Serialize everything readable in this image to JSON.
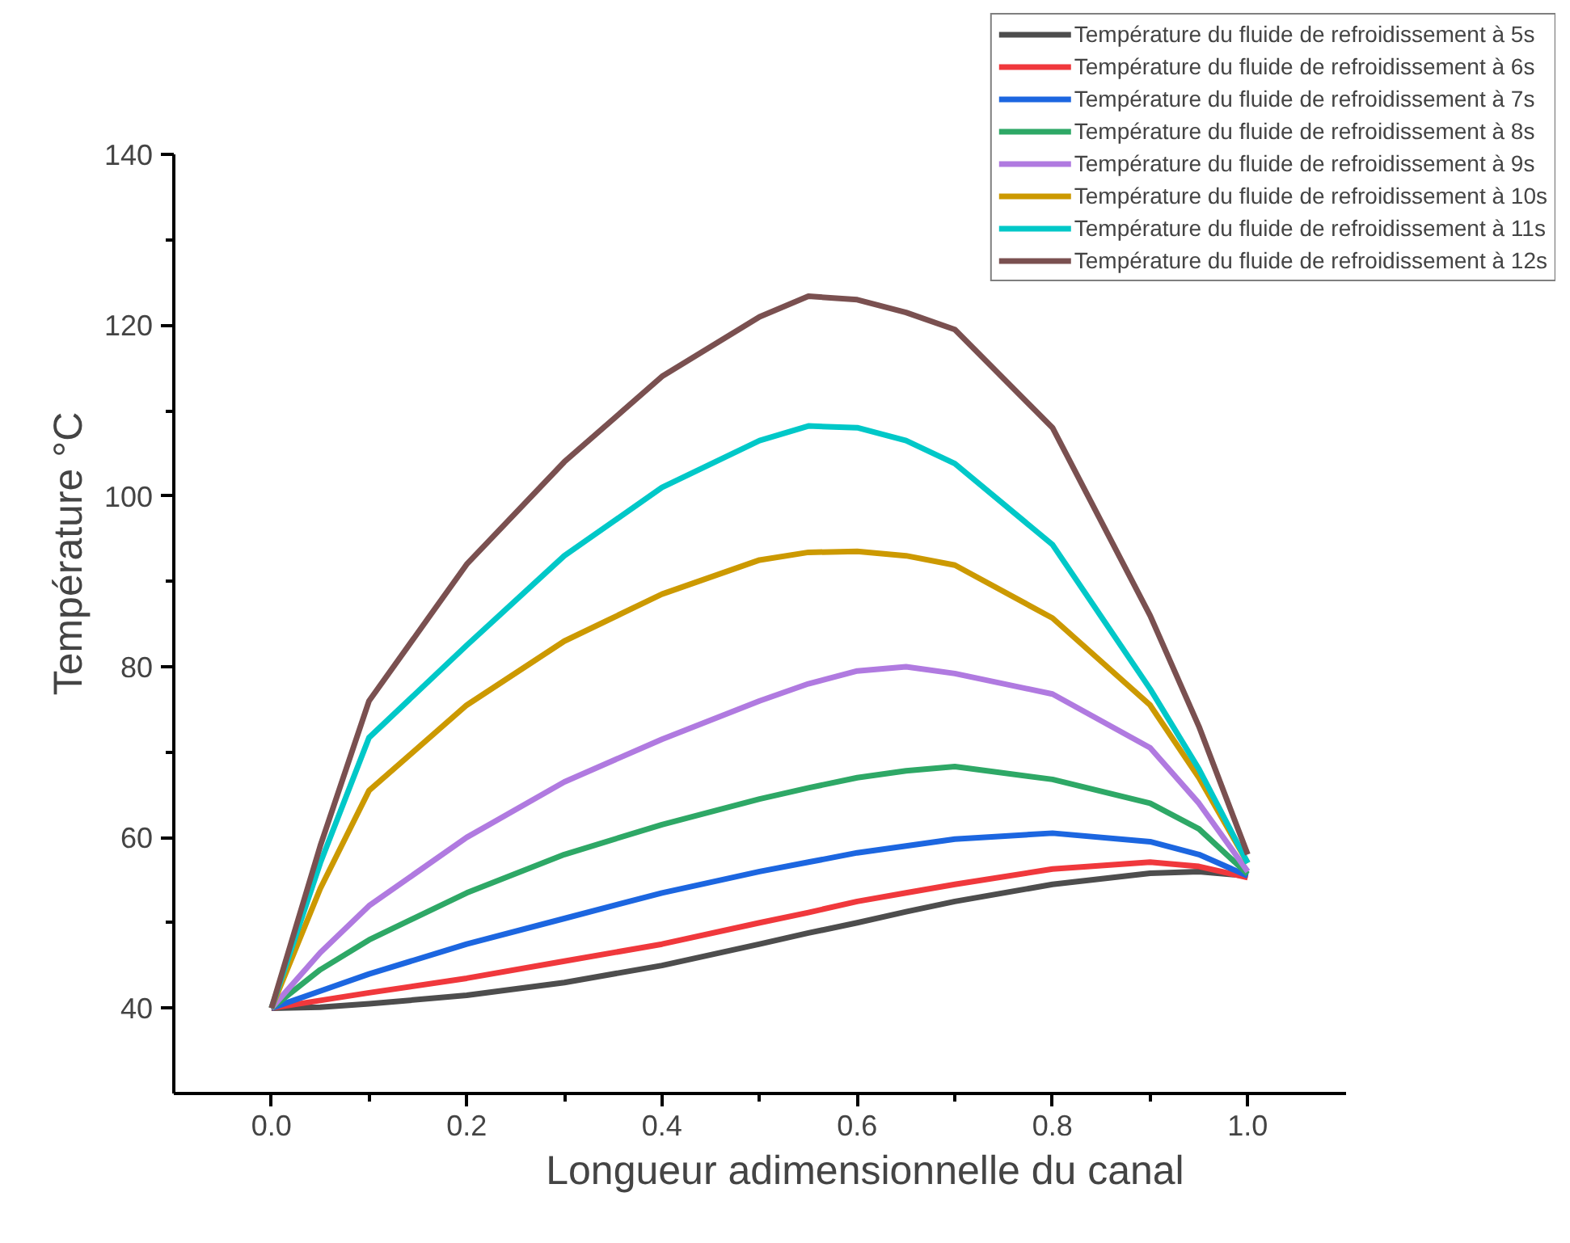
{
  "chart_data": {
    "type": "line",
    "xlabel": "Longueur adimensionnelle du canal",
    "ylabel": "Température °C",
    "x": [
      0,
      0.05,
      0.1,
      0.2,
      0.3,
      0.4,
      0.5,
      0.55,
      0.6,
      0.65,
      0.7,
      0.8,
      0.9,
      0.95,
      1.0
    ],
    "series": [
      {
        "name": "Température du fluide de refroidissement à 5s",
        "color": "#4d4d4d",
        "values": [
          40,
          40.1,
          40.5,
          41.5,
          43,
          45,
          47.5,
          48.8,
          50,
          51.3,
          52.5,
          54.5,
          55.8,
          56,
          55.5
        ]
      },
      {
        "name": "Température du fluide de refroidissement à 6s",
        "color": "#f0383c",
        "values": [
          40,
          40.9,
          41.8,
          43.5,
          45.5,
          47.5,
          50,
          51.2,
          52.5,
          53.5,
          54.5,
          56.3,
          57.1,
          56.6,
          55.3
        ]
      },
      {
        "name": "Température du fluide de refroidissement à 7s",
        "color": "#1c66e0",
        "values": [
          40,
          42,
          44,
          47.5,
          50.5,
          53.5,
          56,
          57.1,
          58.2,
          59,
          59.8,
          60.5,
          59.5,
          58,
          55.5
        ]
      },
      {
        "name": "Température du fluide de refroidissement à 8s",
        "color": "#2ea866",
        "values": [
          40,
          44.5,
          48,
          53.5,
          58,
          61.5,
          64.5,
          65.8,
          67,
          67.8,
          68.3,
          66.8,
          64,
          61,
          55.7
        ]
      },
      {
        "name": "Température du fluide de refroidissement à 9s",
        "color": "#b07ae0",
        "values": [
          40,
          46.5,
          52,
          60,
          66.5,
          71.5,
          76,
          78,
          79.5,
          80,
          79.2,
          76.8,
          70.5,
          64,
          56
        ]
      },
      {
        "name": "Température du fluide de refroidissement à 10s",
        "color": "#cc9900",
        "values": [
          40,
          54,
          65.5,
          75.5,
          83,
          88.5,
          92.5,
          93.4,
          93.5,
          93,
          91.9,
          85.7,
          75.5,
          67,
          57
        ]
      },
      {
        "name": "Température du fluide de refroidissement à 11s",
        "color": "#00c8c8",
        "values": [
          40,
          57,
          71.7,
          82.5,
          93,
          101,
          106.5,
          108.2,
          108,
          106.5,
          103.8,
          94.3,
          77.4,
          68,
          57
        ]
      },
      {
        "name": "Température du fluide de refroidissement à 12s",
        "color": "#7a5050",
        "values": [
          40,
          59,
          76,
          92,
          104,
          114,
          121,
          123.4,
          123,
          121.5,
          119.5,
          108,
          86,
          73,
          58
        ]
      }
    ],
    "xlim": [
      -0.1,
      1.1
    ],
    "xticks": [
      {
        "value": 0,
        "label": "0.0"
      },
      {
        "value": 0.1,
        "label": null
      },
      {
        "value": 0.2,
        "label": "0.2"
      },
      {
        "value": 0.3,
        "label": null
      },
      {
        "value": 0.4,
        "label": "0.4"
      },
      {
        "value": 0.5,
        "label": null
      },
      {
        "value": 0.6,
        "label": "0.6"
      },
      {
        "value": 0.7,
        "label": null
      },
      {
        "value": 0.8,
        "label": "0.8"
      },
      {
        "value": 0.9,
        "label": null
      },
      {
        "value": 1.0,
        "label": "1.0"
      }
    ],
    "ylim": [
      30,
      140
    ],
    "yticks": [
      40,
      {
        "value": 50,
        "label": null
      },
      60,
      {
        "value": 70,
        "label": null
      },
      80,
      {
        "value": 90,
        "label": null
      },
      100,
      {
        "value": 110,
        "label": null
      },
      120,
      {
        "value": 130,
        "label": null
      },
      140
    ],
    "legend": "top right",
    "grid": false,
    "marker": "none",
    "line_style": "solid"
  }
}
